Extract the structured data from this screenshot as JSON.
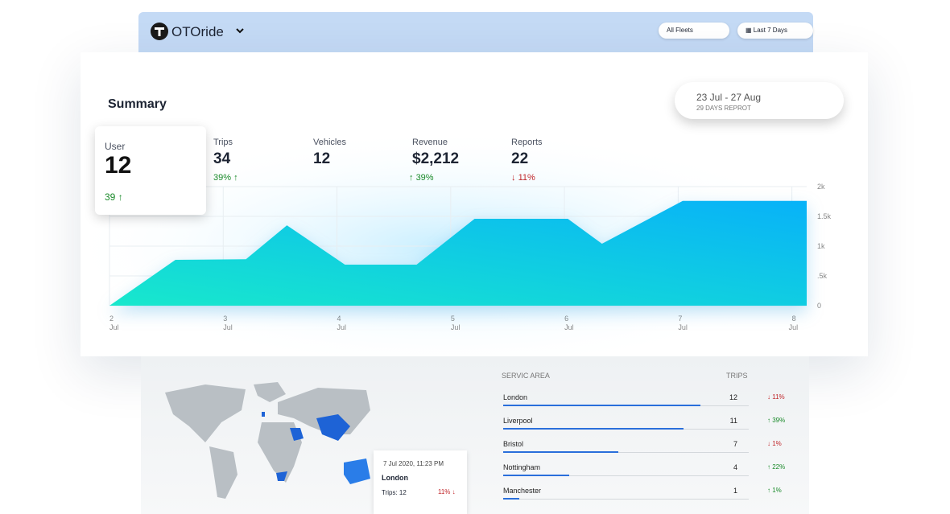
{
  "header": {
    "logo": "OTOride",
    "fleet_filter": "All Fleets",
    "date_filter": "Last 7 Days"
  },
  "summary": {
    "title": "Summary",
    "date_range": "23 Jul - 27 Aug",
    "report_note": "29 DAYS REPROT",
    "stats": [
      {
        "label": "User",
        "value": "12",
        "change": "39"
      },
      {
        "label": "Trips",
        "value": "34",
        "change": "39%"
      },
      {
        "label": "Vehicles",
        "value": "12"
      },
      {
        "label": "Revenue",
        "value": "$2,212",
        "change": "39%"
      },
      {
        "label": "Reports",
        "value": "22",
        "change": "11%"
      }
    ]
  },
  "chart": {
    "type": "area",
    "x": [
      2,
      2.58,
      3.2,
      3.56,
      4.07,
      4.7,
      5.21,
      6.03,
      6.33,
      7.04,
      8.13
    ],
    "values": [
      0,
      770,
      780,
      1350,
      690,
      690,
      1460,
      1460,
      1040,
      1760,
      1760
    ],
    "color": "#0ab4f7",
    "xlim": [
      2,
      8.13
    ],
    "ylim": [
      0,
      2000
    ],
    "xticks": [
      2,
      3,
      4,
      5,
      6,
      7,
      8
    ],
    "x_tick_sublabel": "Jul",
    "yticks": [
      {
        "value": 2000,
        "label": "2k"
      },
      {
        "value": 1500,
        "label": "1.5k"
      },
      {
        "value": 1000,
        "label": "1k"
      },
      {
        "value": 500,
        "label": ".5k"
      },
      0
    ]
  },
  "table": {
    "columns": [
      "SERVIC AREA",
      "TRIPS"
    ],
    "rows": [
      {
        "area": "London",
        "trips": 12,
        "change": "11%"
      },
      {
        "area": "Liverpool",
        "trips": 11,
        "change": "39%"
      },
      {
        "area": "Bristol",
        "trips": 7,
        "change": "1%"
      },
      {
        "area": "Nottingham",
        "trips": 4,
        "change": "22%"
      },
      {
        "area": "Manchester",
        "trips": 1,
        "change": "1%"
      }
    ]
  },
  "tooltip": {
    "date": "7 Jul 2020, 11:23 PM",
    "city": "London",
    "trips_label": "Trips: 12",
    "change": "11%"
  }
}
